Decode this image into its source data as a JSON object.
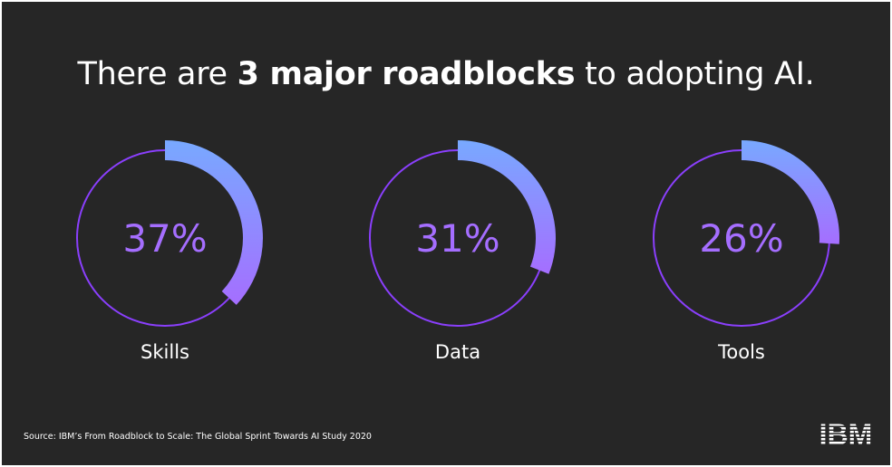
{
  "title": {
    "before": "There are ",
    "bold": "3 major roadblocks",
    "after": " to adopting AI."
  },
  "chart_data": {
    "type": "pie",
    "title": "There are 3 major roadblocks to adopting AI.",
    "categories": [
      "Skills",
      "Data",
      "Tools"
    ],
    "values": [
      37,
      31,
      26
    ],
    "value_labels": [
      "37%",
      "31%",
      "26%"
    ],
    "unit": "%"
  },
  "footer": {
    "source": "Source: IBM’s From Roadblock to Scale: The Global Sprint Towards AI Study 2020",
    "logo": "IBM"
  },
  "colors": {
    "background": "#262626",
    "ring": "#8a3ffc",
    "arc_start": "#78a9ff",
    "arc_end": "#a56eff",
    "value_text": "#a56eff",
    "text": "#ffffff"
  }
}
